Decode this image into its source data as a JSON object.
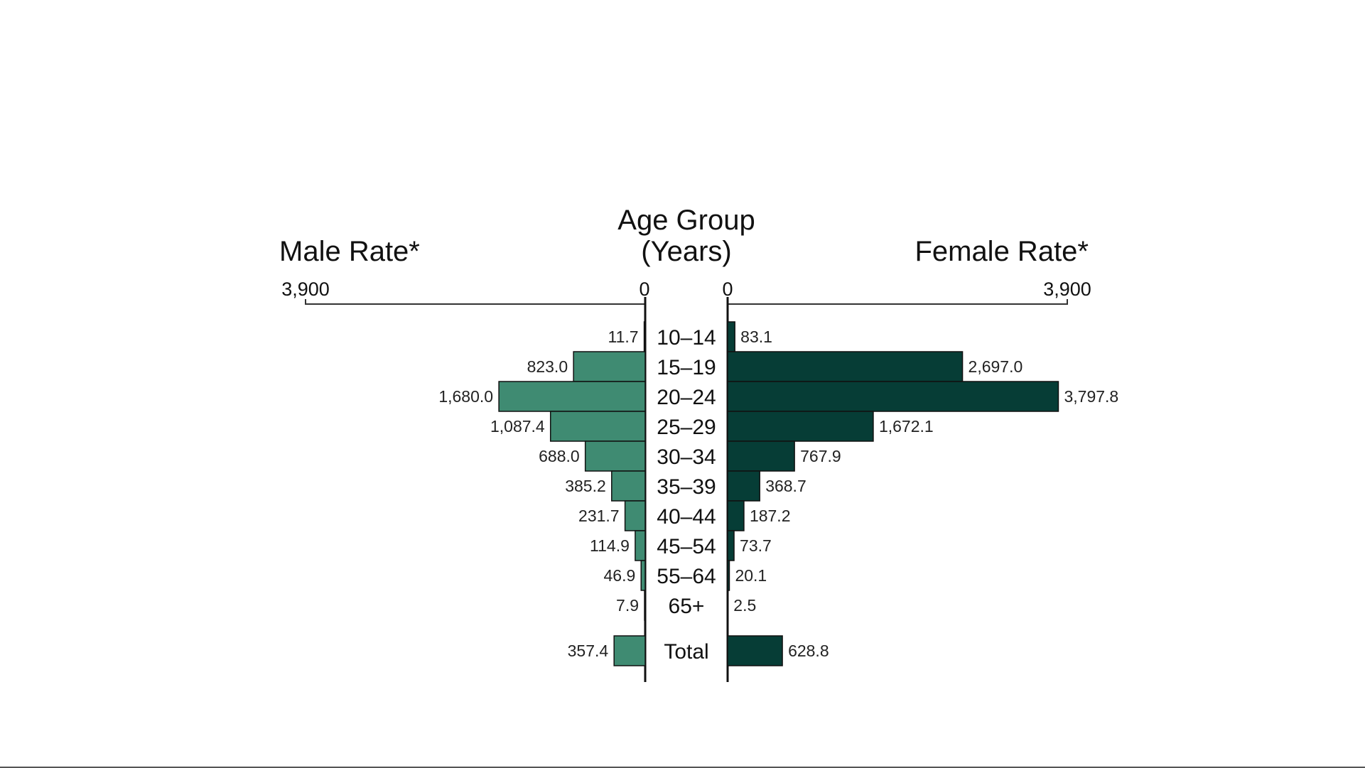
{
  "chart_data": {
    "type": "bar",
    "orientation": "horizontal",
    "layout": "population-pyramid",
    "center_title": [
      "Age Group",
      "(Years)"
    ],
    "left_title": "Male Rate*",
    "right_title": "Female Rate*",
    "xlim": [
      0,
      3900
    ],
    "axis_ticks": [
      "3,900",
      "0"
    ],
    "categories": [
      "10–14",
      "15–19",
      "20–24",
      "25–29",
      "30–34",
      "35–39",
      "40–44",
      "45–54",
      "55–64",
      "65+",
      "Total"
    ],
    "series": [
      {
        "name": "Male Rate*",
        "side": "left",
        "color": "#3f8b72",
        "values": [
          11.7,
          823.0,
          1680.0,
          1087.4,
          688.0,
          385.2,
          231.7,
          114.9,
          46.9,
          7.9,
          357.4
        ],
        "labels": [
          "11.7",
          "823.0",
          "1,680.0",
          "1,087.4",
          "688.0",
          "385.2",
          "231.7",
          "114.9",
          "46.9",
          "7.9",
          "357.4"
        ]
      },
      {
        "name": "Female Rate*",
        "side": "right",
        "color": "#063d36",
        "values": [
          83.1,
          2697.0,
          3797.8,
          1672.1,
          767.9,
          368.7,
          187.2,
          73.7,
          20.1,
          2.5,
          628.8
        ],
        "labels": [
          "83.1",
          "2,697.0",
          "3,797.8",
          "1,672.1",
          "767.9",
          "368.7",
          "187.2",
          "73.7",
          "20.1",
          "2.5",
          "628.8"
        ]
      }
    ],
    "grid": false,
    "legend": "none"
  }
}
